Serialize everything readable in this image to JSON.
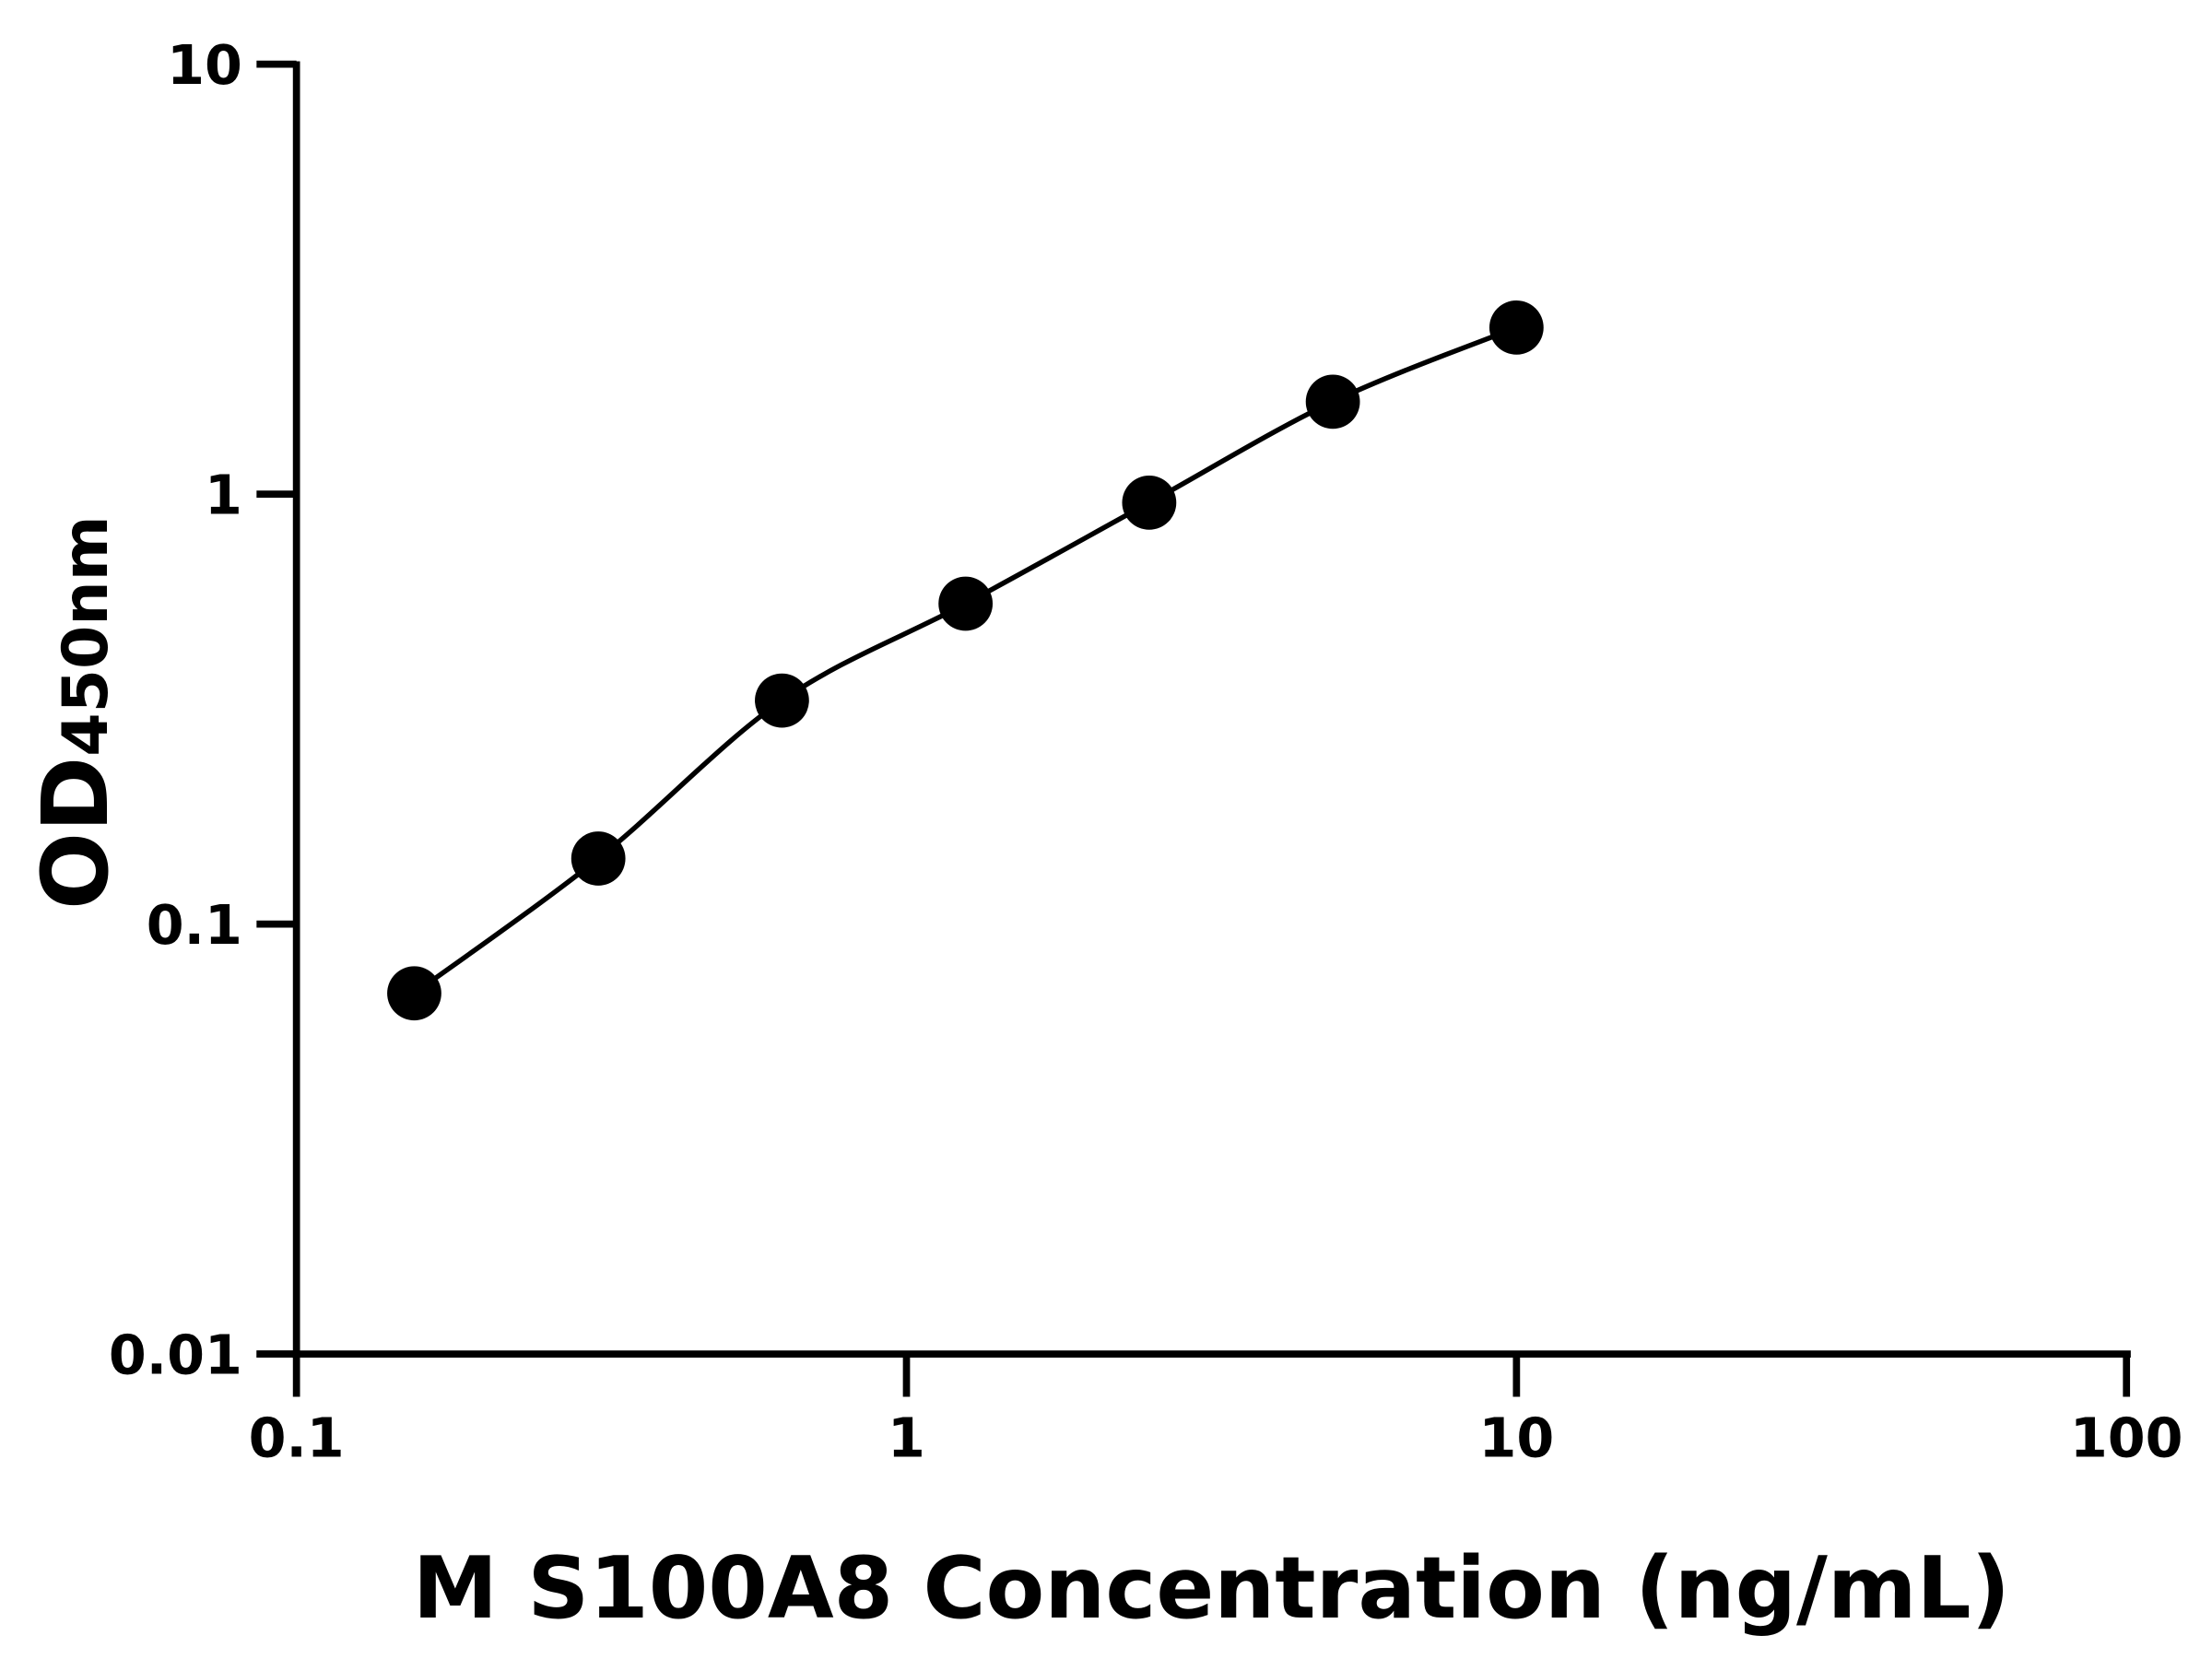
{
  "chart_data": {
    "type": "scatter",
    "title": "",
    "xlabel": "M S100A8 Concentration (ng/mL)",
    "ylabel_main": "OD",
    "ylabel_sub": "450nm",
    "x_scale": "log",
    "y_scale": "log",
    "xlim": [
      0.1,
      100
    ],
    "ylim": [
      0.01,
      10
    ],
    "x_ticks": [
      0.1,
      1,
      10,
      100
    ],
    "x_tick_labels": [
      "0.1",
      "1",
      "10",
      "100"
    ],
    "y_ticks": [
      0.01,
      0.1,
      1,
      10
    ],
    "y_tick_labels": [
      "0.01",
      "0.1",
      "1",
      "10"
    ],
    "grid": false,
    "legend": "none",
    "fit_curve": true,
    "colors": {
      "points": "#000000",
      "line": "#000000"
    },
    "series": [
      {
        "x": [
          0.156,
          0.3125,
          0.625,
          1.25,
          2.5,
          5,
          10
        ],
        "y": [
          0.069,
          0.142,
          0.331,
          0.556,
          0.955,
          1.64,
          2.44
        ]
      }
    ]
  }
}
